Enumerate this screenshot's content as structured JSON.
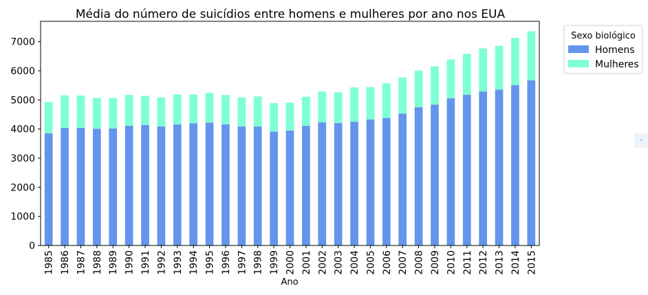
{
  "chart_data": {
    "type": "bar",
    "stacked": true,
    "title": "Média do número de suicídios entre homens e mulheres por ano nos EUA",
    "xlabel": "Ano",
    "ylabel": "",
    "ylim": [
      0,
      7700
    ],
    "yticks": [
      0,
      1000,
      2000,
      3000,
      4000,
      5000,
      6000,
      7000
    ],
    "grid": false,
    "categories": [
      "1985",
      "1986",
      "1987",
      "1988",
      "1989",
      "1990",
      "1991",
      "1992",
      "1993",
      "1994",
      "1995",
      "1996",
      "1997",
      "1998",
      "1999",
      "2000",
      "2001",
      "2002",
      "2003",
      "2004",
      "2005",
      "2006",
      "2007",
      "2008",
      "2009",
      "2010",
      "2011",
      "2012",
      "2013",
      "2014",
      "2015"
    ],
    "series": [
      {
        "name": "Homens",
        "color": "#6495ed",
        "values": [
          3850,
          4040,
          4040,
          4010,
          4020,
          4110,
          4140,
          4090,
          4160,
          4200,
          4220,
          4160,
          4090,
          4090,
          3910,
          3950,
          4110,
          4230,
          4210,
          4250,
          4330,
          4380,
          4530,
          4750,
          4840,
          5060,
          5180,
          5290,
          5350,
          5510,
          5670
        ]
      },
      {
        "name": "Mulheres",
        "color": "#7fffd4",
        "values": [
          1080,
          1120,
          1110,
          1060,
          1040,
          1060,
          1000,
          1000,
          1030,
          990,
          1020,
          1010,
          1000,
          1030,
          980,
          960,
          1000,
          1060,
          1050,
          1180,
          1110,
          1190,
          1240,
          1260,
          1310,
          1330,
          1400,
          1480,
          1510,
          1620,
          1690
        ]
      }
    ],
    "legend": {
      "title": "Sexo biológico",
      "placement": "outside-top-right"
    }
  }
}
